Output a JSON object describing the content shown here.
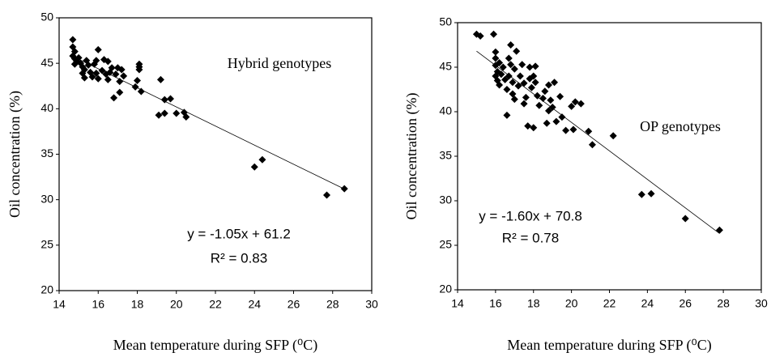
{
  "chart_data": [
    {
      "type": "scatter",
      "annotation": "Hybrid genotypes",
      "xlabel": "Mean temperature during SFP (⁰C)",
      "ylabel": "Oil concentration (%)",
      "x": [
        14.7,
        14.7,
        14.8,
        14.7,
        14.8,
        14.9,
        14.8,
        15.0,
        15.1,
        15.2,
        15.3,
        15.2,
        15.4,
        15.5,
        15.3,
        15.6,
        15.7,
        15.8,
        15.9,
        16.0,
        15.9,
        16.0,
        16.2,
        16.3,
        16.4,
        16.5,
        16.6,
        16.5,
        16.7,
        16.8,
        16.9,
        17.0,
        17.1,
        17.1,
        17.2,
        17.3,
        17.9,
        18.0,
        18.1,
        18.1,
        18.1,
        18.2,
        19.1,
        19.2,
        19.4,
        19.4,
        19.7,
        20.0,
        20.4,
        20.5,
        24.0,
        24.4,
        27.7,
        28.6
      ],
      "values": [
        47.6,
        46.8,
        46.3,
        45.8,
        45.5,
        45.2,
        44.9,
        45.6,
        45.0,
        44.6,
        44.3,
        43.9,
        45.3,
        44.8,
        43.4,
        44.0,
        43.5,
        44.9,
        45.3,
        46.5,
        43.9,
        43.3,
        44.2,
        45.4,
        43.8,
        43.2,
        44.0,
        45.2,
        44.5,
        41.2,
        43.8,
        44.5,
        43.0,
        41.8,
        44.3,
        43.6,
        42.4,
        43.1,
        44.3,
        44.9,
        44.6,
        41.9,
        39.3,
        43.2,
        39.5,
        41.0,
        41.1,
        39.5,
        39.6,
        39.1,
        33.6,
        34.4,
        30.5,
        31.2
      ],
      "color": "#000000",
      "xlim": [
        14,
        30
      ],
      "ylim": [
        20,
        50
      ],
      "xticks": [
        14,
        16,
        18,
        20,
        22,
        24,
        26,
        28,
        30
      ],
      "yticks": [
        20,
        25,
        30,
        35,
        40,
        45,
        50
      ],
      "trendline": {
        "slope": -1.05,
        "intercept": 61.2,
        "equation": "y = -1.05x + 61.2",
        "r2_label": "R² = 0.83"
      }
    },
    {
      "type": "scatter",
      "annotation": "OP genotypes",
      "xlabel": "Mean temperature during SFP (⁰C)",
      "ylabel": "Oil concentration (%)",
      "x": [
        15.0,
        15.2,
        15.9,
        16.0,
        16.0,
        16.0,
        16.1,
        16.0,
        16.1,
        16.2,
        16.2,
        16.3,
        16.4,
        16.5,
        16.6,
        16.6,
        16.7,
        16.7,
        16.8,
        16.8,
        16.9,
        16.9,
        17.0,
        17.0,
        17.1,
        17.2,
        17.3,
        17.4,
        17.5,
        17.5,
        17.6,
        17.7,
        17.8,
        17.8,
        17.9,
        18.0,
        18.0,
        18.1,
        18.1,
        18.2,
        18.3,
        18.5,
        18.6,
        18.7,
        18.8,
        18.8,
        18.9,
        19.0,
        19.1,
        19.2,
        19.4,
        19.5,
        19.7,
        20.0,
        20.1,
        20.2,
        20.5,
        20.9,
        21.1,
        22.2,
        23.7,
        24.2,
        26.0,
        27.8
      ],
      "values": [
        48.7,
        48.5,
        48.7,
        46.7,
        46.0,
        45.2,
        44.5,
        44.0,
        43.5,
        45.5,
        43.0,
        44.2,
        45.0,
        43.6,
        39.6,
        42.5,
        46.0,
        44.0,
        47.5,
        45.3,
        42.0,
        43.3,
        41.4,
        44.8,
        46.8,
        42.9,
        44.0,
        45.3,
        40.9,
        43.2,
        41.6,
        38.4,
        45.0,
        43.7,
        42.7,
        38.2,
        44.0,
        45.1,
        43.3,
        41.8,
        40.7,
        41.5,
        42.3,
        38.7,
        40.1,
        43.0,
        41.3,
        40.5,
        43.3,
        38.9,
        41.7,
        39.4,
        37.9,
        40.6,
        38.0,
        41.1,
        40.9,
        37.8,
        36.3,
        37.3,
        30.7,
        30.8,
        28.0,
        26.7
      ],
      "color": "#000000",
      "xlim": [
        14,
        30
      ],
      "ylim": [
        20,
        50
      ],
      "xticks": [
        14,
        16,
        18,
        20,
        22,
        24,
        26,
        28,
        30
      ],
      "yticks": [
        20,
        25,
        30,
        35,
        40,
        45,
        50
      ],
      "trendline": {
        "slope": -1.6,
        "intercept": 70.8,
        "equation": "y = -1.60x + 70.8",
        "r2_label": "R² = 0.78"
      }
    }
  ]
}
